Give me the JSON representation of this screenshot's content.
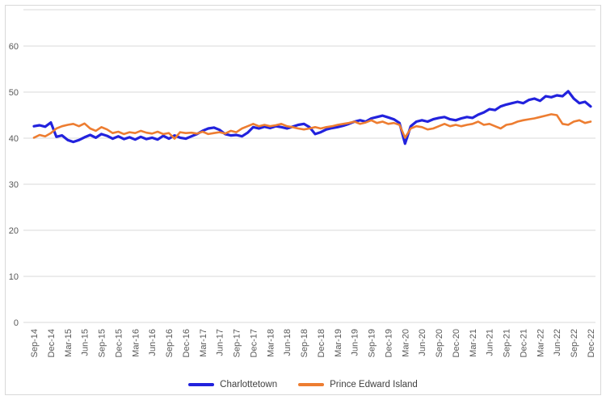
{
  "chart_data": {
    "type": "line",
    "title": "",
    "xlabel": "",
    "ylabel": "",
    "ylim": [
      0,
      60
    ],
    "y_ticks": [
      0,
      10,
      20,
      30,
      40,
      50,
      60
    ],
    "x_tick_interval": 3,
    "grid": "horizontal",
    "legend_position": "bottom",
    "colors": {
      "gridline": "#d9d9d9",
      "axis_text": "#595959",
      "frame_border": "#d9d9d9"
    },
    "x": [
      "Sep-14",
      "Oct-14",
      "Nov-14",
      "Dec-14",
      "Jan-15",
      "Feb-15",
      "Mar-15",
      "Apr-15",
      "May-15",
      "Jun-15",
      "Jul-15",
      "Aug-15",
      "Sep-15",
      "Oct-15",
      "Nov-15",
      "Dec-15",
      "Jan-16",
      "Feb-16",
      "Mar-16",
      "Apr-16",
      "May-16",
      "Jun-16",
      "Jul-16",
      "Aug-16",
      "Sep-16",
      "Oct-16",
      "Nov-16",
      "Dec-16",
      "Jan-17",
      "Feb-17",
      "Mar-17",
      "Apr-17",
      "May-17",
      "Jun-17",
      "Jul-17",
      "Aug-17",
      "Sep-17",
      "Oct-17",
      "Nov-17",
      "Dec-17",
      "Jan-18",
      "Feb-18",
      "Mar-18",
      "Apr-18",
      "May-18",
      "Jun-18",
      "Jul-18",
      "Aug-18",
      "Sep-18",
      "Oct-18",
      "Nov-18",
      "Dec-18",
      "Jan-19",
      "Feb-19",
      "Mar-19",
      "Apr-19",
      "May-19",
      "Jun-19",
      "Jul-19",
      "Aug-19",
      "Sep-19",
      "Oct-19",
      "Nov-19",
      "Dec-19",
      "Jan-20",
      "Feb-20",
      "Mar-20",
      "Apr-20",
      "May-20",
      "Jun-20",
      "Jul-20",
      "Aug-20",
      "Sep-20",
      "Oct-20",
      "Nov-20",
      "Dec-20",
      "Jan-21",
      "Feb-21",
      "Mar-21",
      "Apr-21",
      "May-21",
      "Jun-21",
      "Jul-21",
      "Aug-21",
      "Sep-21",
      "Oct-21",
      "Nov-21",
      "Dec-21",
      "Jan-22",
      "Feb-22",
      "Mar-22",
      "Apr-22",
      "May-22",
      "Jun-22",
      "Jul-22",
      "Aug-22",
      "Sep-22",
      "Oct-22",
      "Nov-22",
      "Dec-22"
    ],
    "series": [
      {
        "name": "Charlottetown",
        "color": "#2222dd",
        "values": [
          42.6,
          42.8,
          42.5,
          43.4,
          40.3,
          40.6,
          39.6,
          39.2,
          39.6,
          40.2,
          40.7,
          40.1,
          40.9,
          40.5,
          39.9,
          40.4,
          39.8,
          40.2,
          39.7,
          40.3,
          39.8,
          40.1,
          39.7,
          40.5,
          39.9,
          40.6,
          40.1,
          39.9,
          40.4,
          40.9,
          41.6,
          42.1,
          42.3,
          41.8,
          40.9,
          40.6,
          40.7,
          40.4,
          41.2,
          42.4,
          42.1,
          42.5,
          42.2,
          42.6,
          42.4,
          42.1,
          42.5,
          42.9,
          43.1,
          42.4,
          40.9,
          41.3,
          41.9,
          42.2,
          42.4,
          42.7,
          43.1,
          43.6,
          43.9,
          43.6,
          44.3,
          44.6,
          44.9,
          44.5,
          44.1,
          43.3,
          38.8,
          42.6,
          43.6,
          43.9,
          43.6,
          44.1,
          44.4,
          44.6,
          44.1,
          43.9,
          44.3,
          44.6,
          44.4,
          45.1,
          45.6,
          46.3,
          46.1,
          46.9,
          47.3,
          47.6,
          47.9,
          47.6,
          48.3,
          48.6,
          48.1,
          49.1,
          48.9,
          49.3,
          49.1,
          50.2,
          48.6,
          47.6,
          47.9,
          46.9
        ]
      },
      {
        "name": "Prince Edward Island",
        "color": "#ED7D31",
        "values": [
          40.1,
          40.7,
          40.4,
          41.1,
          42.1,
          42.6,
          42.9,
          43.1,
          42.6,
          43.2,
          42.1,
          41.6,
          42.4,
          41.9,
          41.1,
          41.4,
          40.9,
          41.3,
          41.1,
          41.6,
          41.2,
          41.0,
          41.4,
          40.9,
          41.1,
          39.9,
          41.3,
          41.1,
          41.2,
          41.0,
          41.4,
          40.9,
          41.1,
          41.3,
          41.0,
          41.6,
          41.3,
          42.1,
          42.6,
          43.1,
          42.6,
          42.9,
          42.6,
          42.8,
          43.1,
          42.6,
          42.4,
          42.1,
          41.9,
          42.1,
          42.4,
          42.1,
          42.4,
          42.6,
          42.9,
          43.1,
          43.3,
          43.6,
          43.1,
          43.4,
          43.9,
          43.3,
          43.6,
          43.1,
          43.3,
          42.9,
          40.1,
          42.1,
          42.6,
          42.4,
          41.9,
          42.1,
          42.6,
          43.1,
          42.6,
          42.9,
          42.6,
          42.9,
          43.1,
          43.6,
          42.9,
          43.1,
          42.6,
          42.1,
          42.9,
          43.1,
          43.6,
          43.9,
          44.1,
          44.3,
          44.6,
          44.9,
          45.2,
          45.0,
          43.1,
          42.9,
          43.6,
          43.9,
          43.3,
          43.6
        ]
      }
    ]
  }
}
